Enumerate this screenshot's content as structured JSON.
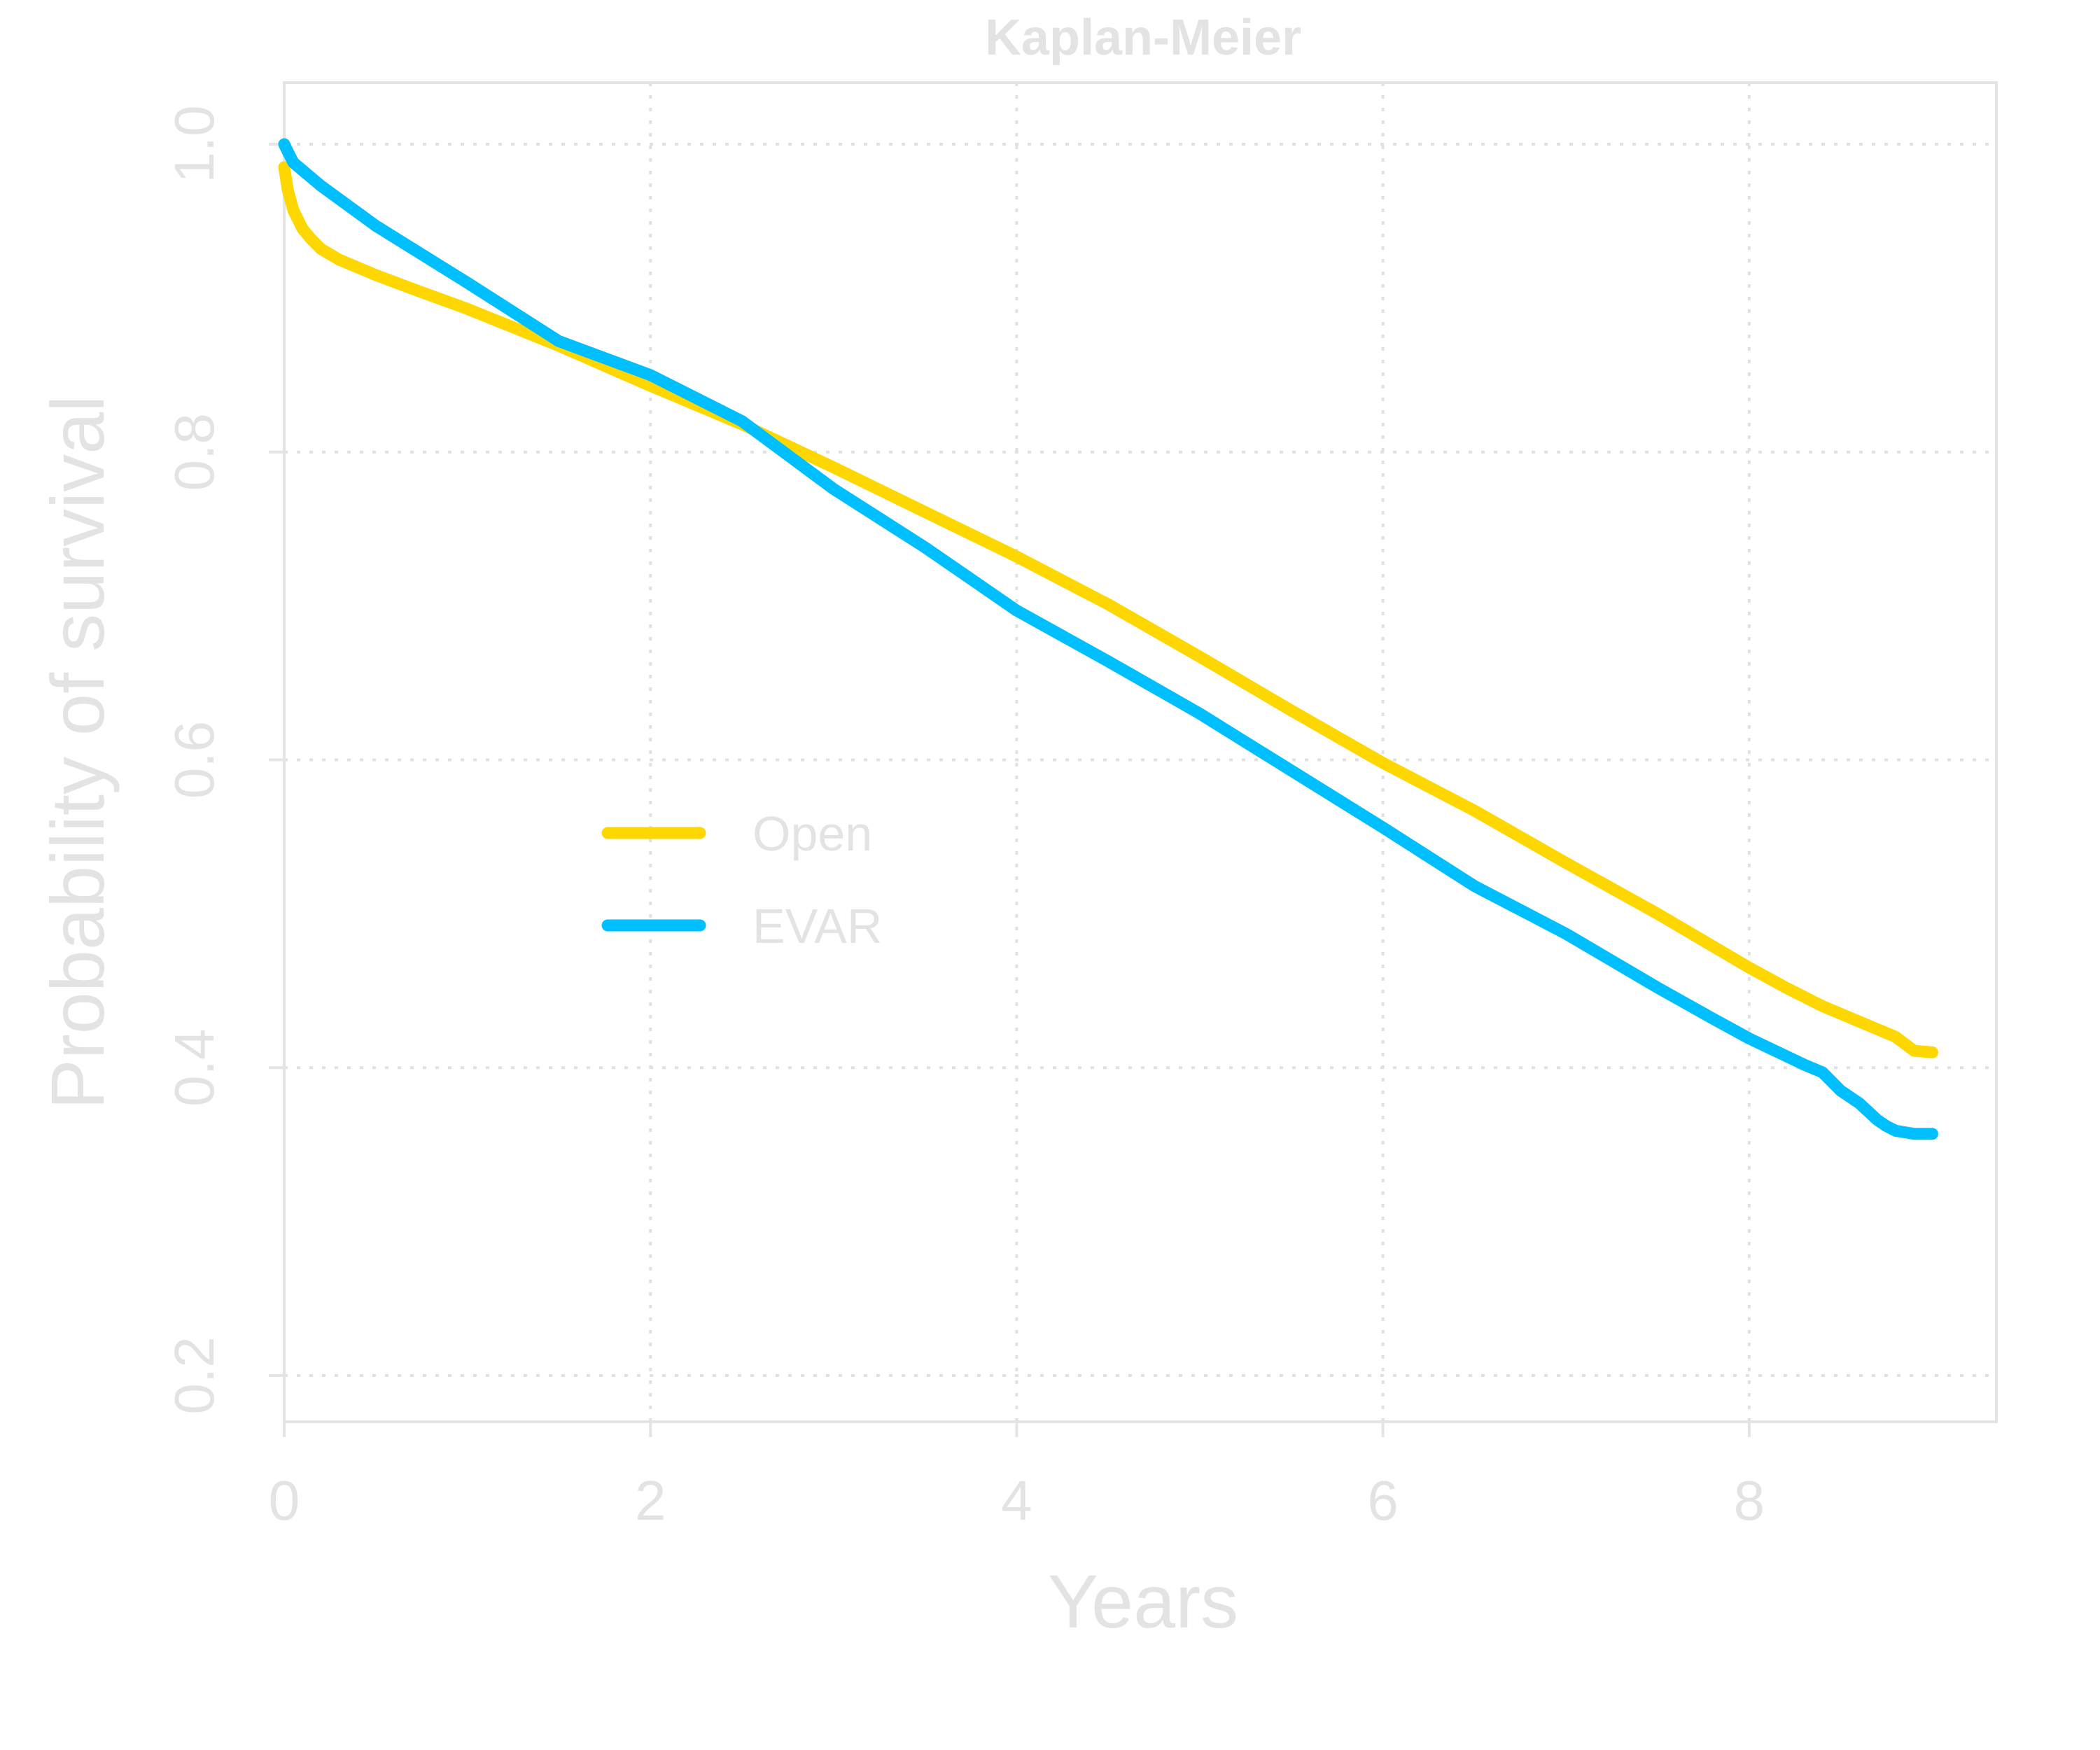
{
  "chart_data": {
    "type": "line",
    "title": "Kaplan-Meier",
    "xlabel": "Years",
    "ylabel": "Probability of survival",
    "xlim": [
      0,
      9.35
    ],
    "ylim": [
      0.17,
      1.04
    ],
    "xticks": [
      0,
      2,
      4,
      6,
      8
    ],
    "yticks": [
      0.2,
      0.4,
      0.6,
      0.8,
      1.0
    ],
    "xtick_labels": [
      "0",
      "2",
      "4",
      "6",
      "8"
    ],
    "ytick_labels": [
      "0.2",
      "0.4",
      "0.6",
      "0.8",
      "1.0"
    ],
    "grid": true,
    "legend_position": "center-left",
    "series": [
      {
        "name": "Open",
        "color": "#ffd700",
        "x": [
          0,
          0.02,
          0.05,
          0.1,
          0.15,
          0.2,
          0.3,
          0.4,
          0.5,
          0.7,
          1.0,
          1.5,
          2.0,
          2.5,
          3.0,
          3.5,
          4.0,
          4.5,
          5.0,
          5.5,
          6.0,
          6.5,
          7.0,
          7.5,
          8.0,
          8.2,
          8.4,
          8.6,
          8.8,
          8.9,
          9.0
        ],
        "y": [
          0.985,
          0.97,
          0.957,
          0.945,
          0.938,
          0.932,
          0.925,
          0.92,
          0.915,
          0.906,
          0.893,
          0.869,
          0.843,
          0.818,
          0.79,
          0.761,
          0.732,
          0.701,
          0.667,
          0.632,
          0.598,
          0.567,
          0.533,
          0.5,
          0.465,
          0.452,
          0.44,
          0.43,
          0.42,
          0.411,
          0.41
        ]
      },
      {
        "name": "EVAR",
        "color": "#00bfff",
        "x": [
          0,
          0.02,
          0.05,
          0.2,
          0.5,
          1.0,
          1.5,
          2.0,
          2.5,
          3.0,
          3.5,
          4.0,
          4.5,
          5.0,
          5.5,
          6.0,
          6.5,
          7.0,
          7.5,
          7.8,
          8.0,
          8.3,
          8.4,
          8.5,
          8.6,
          8.7,
          8.75,
          8.8,
          8.9,
          9.0
        ],
        "y": [
          1.0,
          0.995,
          0.988,
          0.973,
          0.947,
          0.91,
          0.872,
          0.85,
          0.82,
          0.776,
          0.738,
          0.697,
          0.664,
          0.63,
          0.593,
          0.556,
          0.518,
          0.487,
          0.452,
          0.432,
          0.419,
          0.402,
          0.397,
          0.385,
          0.377,
          0.366,
          0.362,
          0.359,
          0.357,
          0.357
        ]
      }
    ]
  }
}
